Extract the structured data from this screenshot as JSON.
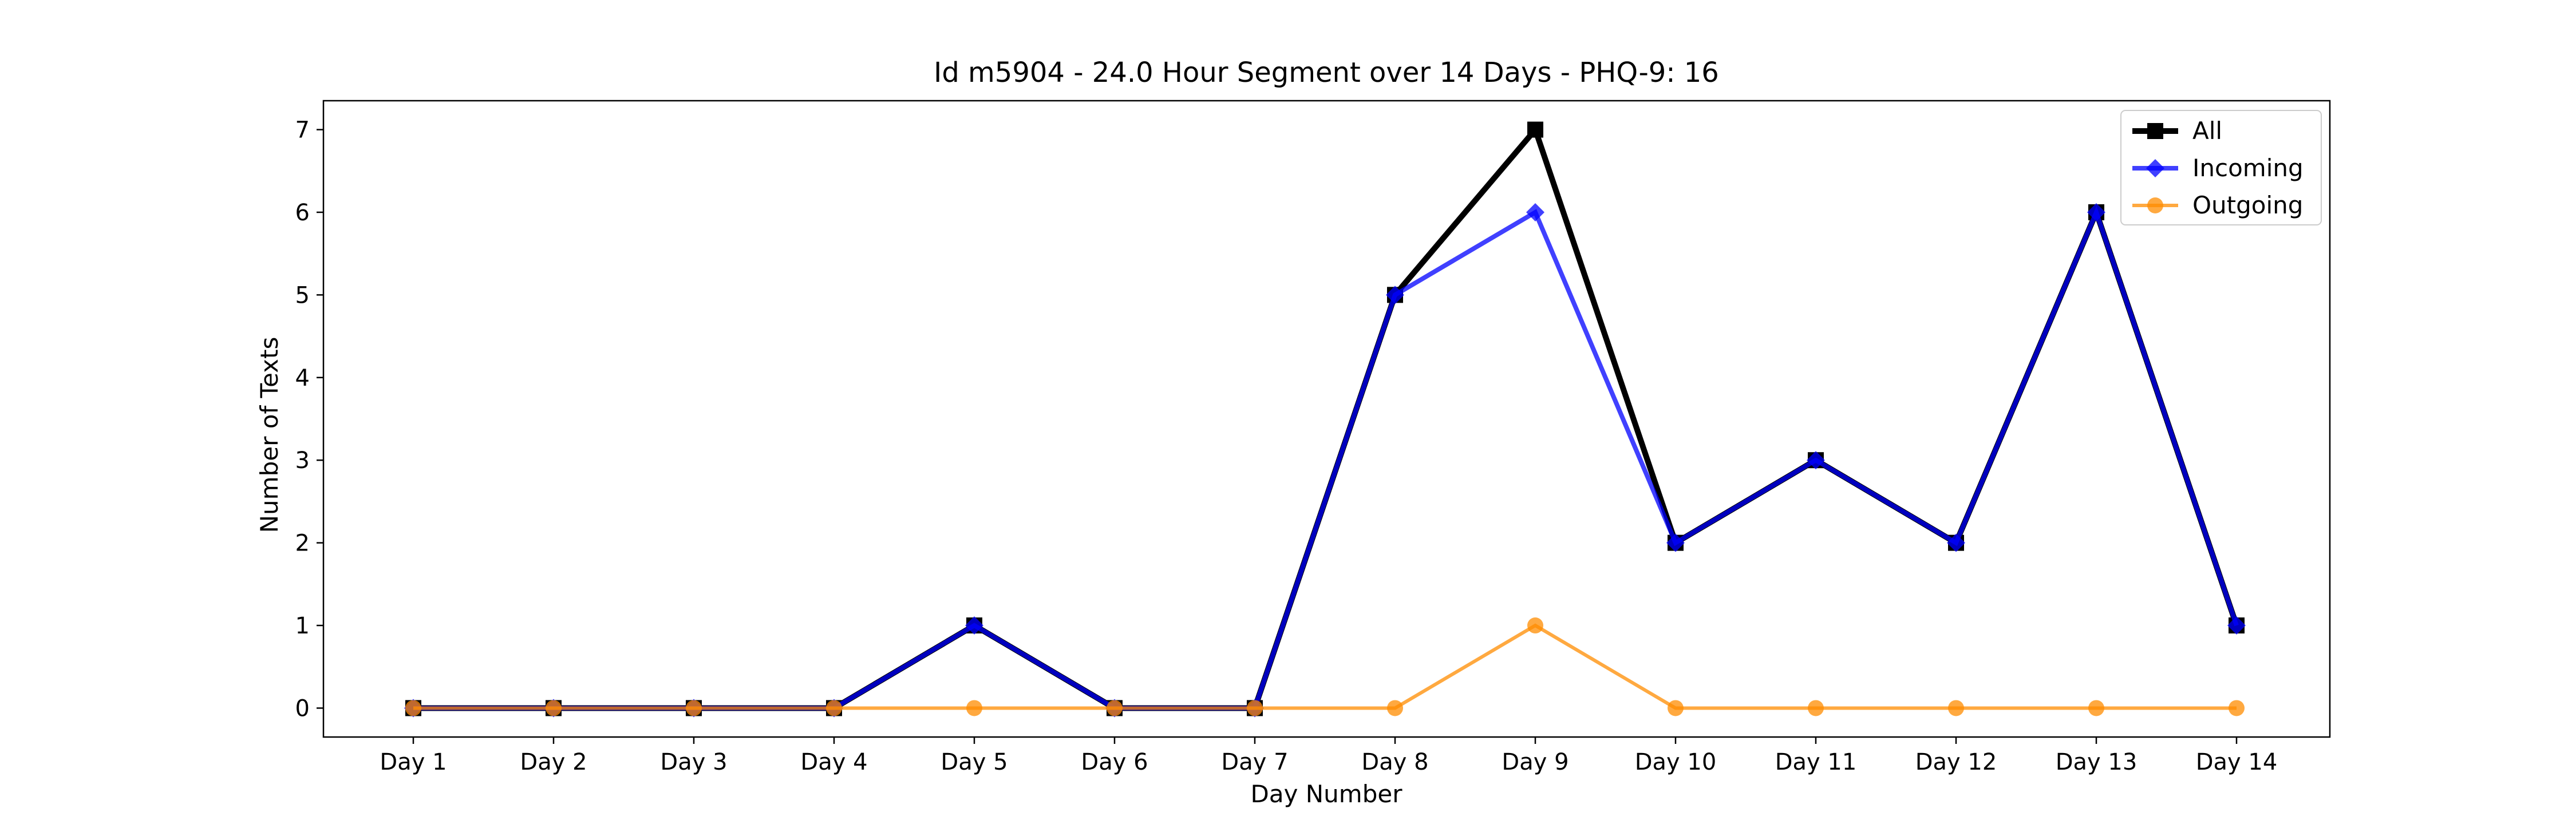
{
  "chart_data": {
    "type": "line",
    "title": "Id m5904 - 24.0 Hour Segment over 14 Days - PHQ-9: 16",
    "xlabel": "Day Number",
    "ylabel": "Number of Texts",
    "categories": [
      "Day 1",
      "Day 2",
      "Day 3",
      "Day 4",
      "Day 5",
      "Day 6",
      "Day 7",
      "Day 8",
      "Day 9",
      "Day 10",
      "Day 11",
      "Day 12",
      "Day 13",
      "Day 14"
    ],
    "ylim": [
      -0.35,
      7.35
    ],
    "yticks": [
      "0",
      "1",
      "2",
      "3",
      "4",
      "5",
      "6",
      "7"
    ],
    "grid": false,
    "legend_position": "top-right",
    "series": [
      {
        "name": "All",
        "values": [
          0,
          0,
          0,
          0,
          1,
          0,
          0,
          5,
          7,
          2,
          3,
          2,
          6,
          1
        ],
        "color": "#000000",
        "marker": "square"
      },
      {
        "name": "Incoming",
        "values": [
          0,
          0,
          0,
          0,
          1,
          0,
          0,
          5,
          6,
          2,
          3,
          2,
          6,
          1
        ],
        "color": "#0000ff",
        "marker": "diamond"
      },
      {
        "name": "Outgoing",
        "values": [
          0,
          0,
          0,
          0,
          0,
          0,
          0,
          0,
          1,
          0,
          0,
          0,
          0,
          0
        ],
        "color": "#ff8c00",
        "marker": "circle"
      }
    ]
  }
}
